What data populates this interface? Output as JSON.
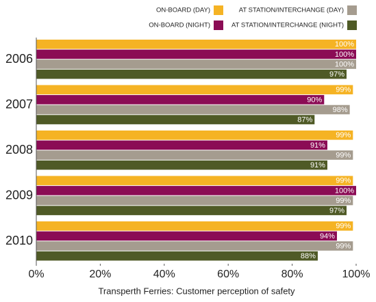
{
  "chart_data": {
    "type": "hbar",
    "title": "Transperth Ferries: Customer perception of safety",
    "categories": [
      "2006",
      "2007",
      "2008",
      "2009",
      "2010"
    ],
    "series": [
      {
        "name": "ON-BOARD (DAY)",
        "color": "#f5b324",
        "values": [
          100,
          99,
          99,
          99,
          99
        ],
        "value_labels": [
          "100%",
          "99%",
          "99%",
          "99%",
          "99%"
        ]
      },
      {
        "name": "ON-BOARD (NIGHT)",
        "color": "#8b0c55",
        "values": [
          100,
          90,
          91,
          100,
          94
        ],
        "value_labels": [
          "100%",
          "90%",
          "91%",
          "100%",
          "94%"
        ]
      },
      {
        "name": "AT STATION/INTERCHANGE (DAY)",
        "color": "#a59c8f",
        "values": [
          100,
          98,
          99,
          99,
          99
        ],
        "value_labels": [
          "100%",
          "98%",
          "99%",
          "99%",
          "99%"
        ]
      },
      {
        "name": "AT STATION/INTERCHANGE (NIGHT)",
        "color": "#4f5a26",
        "values": [
          97,
          87,
          91,
          97,
          88
        ],
        "value_labels": [
          "97%",
          "87%",
          "91%",
          "97%",
          "88%"
        ]
      }
    ],
    "xlim": [
      0,
      100
    ],
    "xticks": [
      {
        "value": 0,
        "label": "0%"
      },
      {
        "value": 20,
        "label": "20%"
      },
      {
        "value": 40,
        "label": "40%"
      },
      {
        "value": 60,
        "label": "60%"
      },
      {
        "value": 80,
        "label": "80%"
      },
      {
        "value": 100,
        "label": "100%"
      }
    ],
    "legend": "top-right"
  }
}
